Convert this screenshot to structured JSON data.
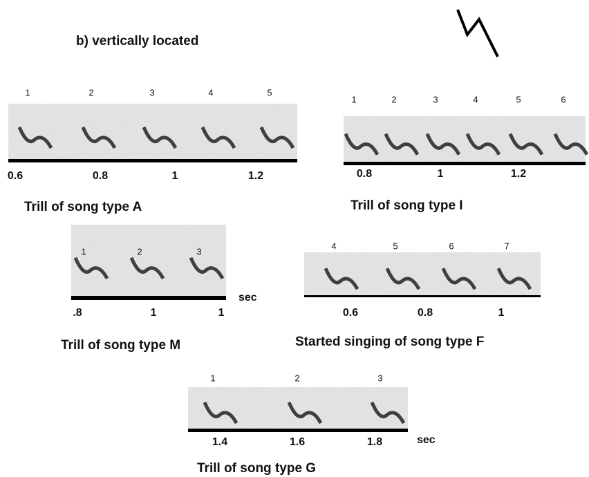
{
  "title": "b) vertically located",
  "panels": [
    {
      "syllables": [
        "1",
        "2",
        "3",
        "4",
        "5"
      ],
      "ticks": [
        "0.6",
        "0.8",
        "1",
        "1.2"
      ],
      "caption": "Trill of song type A"
    },
    {
      "syllables": [
        "1",
        "2",
        "3",
        "4",
        "5",
        "6"
      ],
      "ticks": [
        "0.8",
        "1",
        "1.2"
      ],
      "caption": "Trill of song type I"
    },
    {
      "syllables": [
        "1",
        "2",
        "3"
      ],
      "ticks": [
        ".8",
        "1",
        "1"
      ],
      "unit": "sec",
      "caption": "Trill of song type M"
    },
    {
      "syllables": [
        "4",
        "5",
        "6",
        "7"
      ],
      "ticks": [
        "0.6",
        "0.8",
        "1"
      ],
      "caption": "Started singing of song type F"
    },
    {
      "syllables": [
        "1",
        "2",
        "3"
      ],
      "ticks": [
        "1.4",
        "1.6",
        "1.8"
      ],
      "unit": "sec",
      "caption": "Trill of song type G"
    }
  ]
}
